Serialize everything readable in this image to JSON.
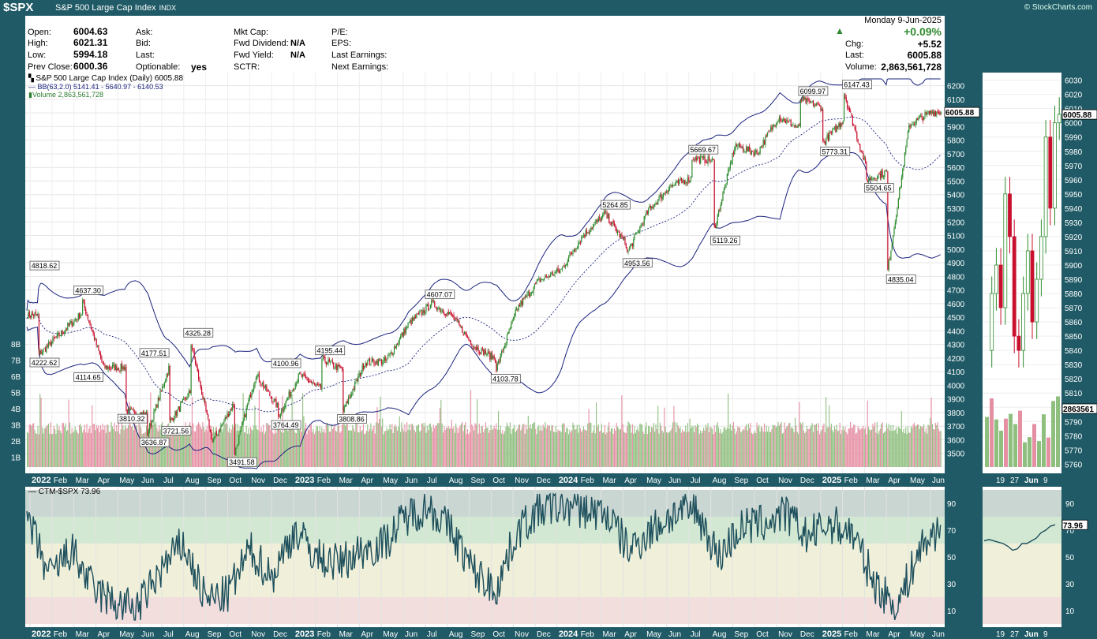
{
  "header": {
    "symbol": "$SPX",
    "name": "S&P 500 Large Cap Index",
    "exchange": "INDX",
    "credit": "© StockCharts.com"
  },
  "quote": {
    "open_label": "Open:",
    "open": "6004.63",
    "high_label": "High:",
    "high": "6021.31",
    "low_label": "Low:",
    "low": "5994.18",
    "prev_label": "Prev Close:",
    "prev": "6000.36",
    "ask_label": "Ask:",
    "bid_label": "Bid:",
    "last_label": "Last:",
    "optionable_label": "Optionable:",
    "optionable": "yes",
    "mktcap_label": "Mkt Cap:",
    "fwd_div_label": "Fwd Dividend:",
    "fwd_div": "N/A",
    "fwd_yield_label": "Fwd Yield:",
    "fwd_yield": "N/A",
    "sctr_label": "SCTR:",
    "pe_label": "P/E:",
    "eps_label": "EPS:",
    "last_earn_label": "Last Earnings:",
    "next_earn_label": "Next Earnings:",
    "date": "Monday  9-Jun-2025",
    "pct": "+0.09%",
    "chg_label": "Chg:",
    "chg": "+5.52",
    "last_price_label": "Last:",
    "last_price": "6005.88",
    "volume_label": "Volume:",
    "volume": "2,863,561,728"
  },
  "legend": {
    "price": "S&P 500 Large Cap Index (Daily) 6005.88",
    "bb": "BB(63,2.0) 5141.41 - 5640.97 - 6140.53",
    "volume": "Volume 2,863,561,728",
    "indicator": "CTM-$SPX 73.96"
  },
  "colors": {
    "up": "#2e8b2e",
    "down": "#c8102e",
    "band": "#1a237e",
    "vol_up": "#8fbf7f",
    "vol_down": "#e58fa3",
    "ctm": "#1d4f5c"
  },
  "axis": {
    "price_ticks": [
      "6200",
      "6100",
      "6000",
      "5900",
      "5800",
      "5700",
      "5600",
      "5500",
      "5400",
      "5300",
      "5200",
      "5100",
      "5000",
      "4900",
      "4800",
      "4700",
      "4600",
      "4500",
      "4400",
      "4300",
      "4200",
      "4100",
      "4000",
      "3900",
      "3800",
      "3700",
      "3600",
      "3500"
    ],
    "volume_ticks": [
      "8B",
      "7B",
      "6B",
      "5B",
      "4B",
      "3B",
      "2B",
      "1B"
    ],
    "side_ticks": [
      "6030",
      "6020",
      "6010",
      "6000",
      "5990",
      "5980",
      "5970",
      "5960",
      "5950",
      "5940",
      "5930",
      "5920",
      "5910",
      "5900",
      "5890",
      "5880",
      "5870",
      "5860",
      "5850",
      "5840",
      "5830",
      "5820",
      "5810",
      "5800",
      "5790",
      "5780",
      "5770",
      "5760"
    ],
    "ctm_ticks": [
      "90",
      "70",
      "50",
      "30",
      "10"
    ],
    "months": [
      "2022",
      "Feb",
      "Mar",
      "Apr",
      "May",
      "Jun",
      "Jul",
      "Aug",
      "Sep",
      "Oct",
      "Nov",
      "Dec",
      "2023",
      "Feb",
      "Mar",
      "Apr",
      "May",
      "Jun",
      "Jul",
      "Aug",
      "Sep",
      "Oct",
      "Nov",
      "Dec",
      "2024",
      "Feb",
      "Mar",
      "Apr",
      "May",
      "Jun",
      "Jul",
      "Aug",
      "Sep",
      "Oct",
      "Nov",
      "Dec",
      "2025",
      "Feb",
      "Mar",
      "Apr",
      "May",
      "Jun"
    ],
    "side_dates": [
      "19",
      "27",
      "Jun",
      "9"
    ]
  },
  "last_tags": {
    "price": "6005.88",
    "side_price": "6005.88",
    "side_volume": "2863561",
    "ctm": "73.96",
    "side_ctm": "73.96"
  },
  "chart_data": [
    {
      "type": "line",
      "title": "S&P 500 Large Cap Index (Daily) 6005.88",
      "x": [
        "2022-01",
        "2022-02",
        "2022-03",
        "2022-04",
        "2022-05",
        "2022-06",
        "2022-07",
        "2022-08",
        "2022-09",
        "2022-10",
        "2022-11",
        "2022-12",
        "2023-01",
        "2023-02",
        "2023-03",
        "2023-04",
        "2023-05",
        "2023-06",
        "2023-07",
        "2023-08",
        "2023-09",
        "2023-10",
        "2023-11",
        "2023-12",
        "2024-01",
        "2024-02",
        "2024-03",
        "2024-04",
        "2024-05",
        "2024-06",
        "2024-07",
        "2024-08",
        "2024-09",
        "2024-10",
        "2024-11",
        "2024-12",
        "2025-01",
        "2025-02",
        "2025-03",
        "2025-04",
        "2025-05",
        "2025-06"
      ],
      "series": [
        {
          "values": [
            4516,
            4374,
            4530,
            4132,
            4132,
            3785,
            4130,
            3955,
            3585,
            3872,
            4080,
            3840,
            4077,
            3970,
            4109,
            4169,
            4180,
            4450,
            4588,
            4508,
            4288,
            4194,
            4568,
            4770,
            4846,
            5096,
            5254,
            5036,
            5278,
            5460,
            5522,
            5648,
            5762,
            5705,
            5970,
            5882,
            6040,
            5955,
            5612,
            5570,
            5912,
            6005
          ]
        }
      ],
      "annotations": [
        {
          "label": "4818.62",
          "date": "2022-01",
          "value": 4818.62
        },
        {
          "label": "4222.62",
          "date": "2022-01",
          "value": 4222.62
        },
        {
          "label": "4114.65",
          "date": "2022-03",
          "value": 4114.65
        },
        {
          "label": "4637.30",
          "date": "2022-03",
          "value": 4637.3
        },
        {
          "label": "4177.51",
          "date": "2022-06",
          "value": 4177.51
        },
        {
          "label": "3810.32",
          "date": "2022-05",
          "value": 3810.32
        },
        {
          "label": "3721.56",
          "date": "2022-07",
          "value": 3721.56
        },
        {
          "label": "3636.87",
          "date": "2022-06",
          "value": 3636.87
        },
        {
          "label": "4325.28",
          "date": "2022-08",
          "value": 4325.28
        },
        {
          "label": "3491.58",
          "date": "2022-10",
          "value": 3491.58
        },
        {
          "label": "4100.96",
          "date": "2022-12",
          "value": 4100.96
        },
        {
          "label": "4195.44",
          "date": "2023-02",
          "value": 4195.44
        },
        {
          "label": "3764.49",
          "date": "2022-12",
          "value": 3764.49
        },
        {
          "label": "3808.86",
          "date": "2023-03",
          "value": 3808.86
        },
        {
          "label": "4607.07",
          "date": "2023-07",
          "value": 4607.07
        },
        {
          "label": "4103.78",
          "date": "2023-10",
          "value": 4103.78
        },
        {
          "label": "5264.85",
          "date": "2024-03",
          "value": 5264.85
        },
        {
          "label": "4953.56",
          "date": "2024-04",
          "value": 4953.56
        },
        {
          "label": "5669.67",
          "date": "2024-07",
          "value": 5669.67
        },
        {
          "label": "5119.26",
          "date": "2024-08",
          "value": 5119.26
        },
        {
          "label": "6099.97",
          "date": "2024-12",
          "value": 6099.97
        },
        {
          "label": "6147.43",
          "date": "2025-02",
          "value": 6147.43
        },
        {
          "label": "5773.31",
          "date": "2025-01",
          "value": 5773.31
        },
        {
          "label": "5504.65",
          "date": "2025-03",
          "value": 5504.65
        },
        {
          "label": "4835.04",
          "date": "2025-04",
          "value": 4835.04
        }
      ],
      "ylim": [
        3400,
        6250
      ]
    },
    {
      "type": "line",
      "title": "CTM-$SPX 73.96",
      "x": [
        "2022-01",
        "2022-02",
        "2022-03",
        "2022-04",
        "2022-05",
        "2022-06",
        "2022-07",
        "2022-08",
        "2022-09",
        "2022-10",
        "2022-11",
        "2022-12",
        "2023-01",
        "2023-02",
        "2023-03",
        "2023-04",
        "2023-05",
        "2023-06",
        "2023-07",
        "2023-08",
        "2023-09",
        "2023-10",
        "2023-11",
        "2023-12",
        "2024-01",
        "2024-02",
        "2024-03",
        "2024-04",
        "2024-05",
        "2024-06",
        "2024-07",
        "2024-08",
        "2024-09",
        "2024-10",
        "2024-11",
        "2024-12",
        "2025-01",
        "2025-02",
        "2025-03",
        "2025-04",
        "2025-05",
        "2025-06"
      ],
      "series": [
        {
          "values": [
            80,
            35,
            55,
            25,
            15,
            12,
            40,
            60,
            18,
            22,
            55,
            35,
            70,
            50,
            45,
            55,
            60,
            80,
            88,
            70,
            40,
            25,
            70,
            85,
            88,
            85,
            82,
            55,
            70,
            82,
            85,
            50,
            72,
            75,
            82,
            65,
            75,
            68,
            30,
            12,
            55,
            74
          ]
        }
      ],
      "ylim": [
        0,
        100
      ]
    }
  ]
}
